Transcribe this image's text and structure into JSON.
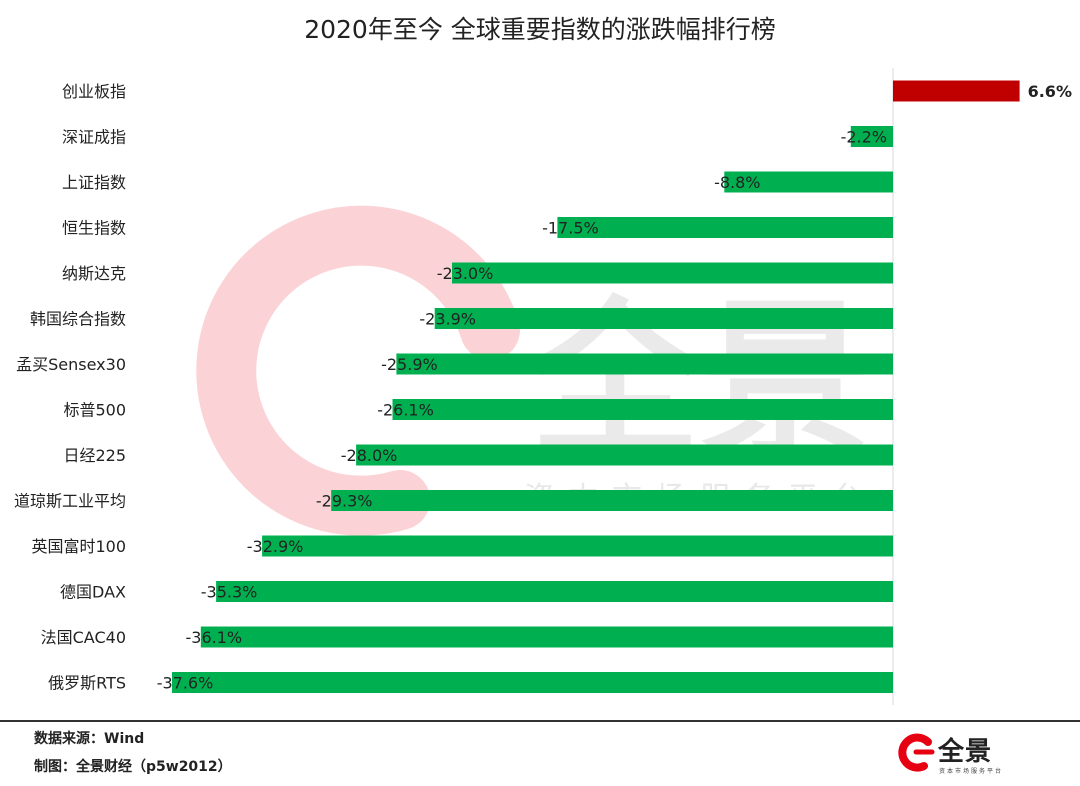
{
  "chart_data": {
    "type": "bar",
    "orientation": "horizontal",
    "title": "2020年至今 全球重要指数的涨跌幅排行榜",
    "categories": [
      "创业板指",
      "深证成指",
      "上证指数",
      "恒生指数",
      "纳斯达克",
      "韩国综合指数",
      "孟买Sensex30",
      "标普500",
      "日经225",
      "道琼斯工业平均",
      "英国富时100",
      "德国DAX",
      "法国CAC40",
      "俄罗斯RTS"
    ],
    "values": [
      6.6,
      -2.2,
      -8.8,
      -17.5,
      -23.0,
      -23.9,
      -25.9,
      -26.1,
      -28.0,
      -29.3,
      -32.9,
      -35.3,
      -36.1,
      -37.6
    ],
    "data_labels": [
      "6.6%",
      "-2.2%",
      "-8.8%",
      "-17.5%",
      "-23.0%",
      "-23.9%",
      "-25.9%",
      "-26.1%",
      "-28.0%",
      "-29.3%",
      "-32.9%",
      "-35.3%",
      "-36.1%",
      "-37.6%"
    ],
    "xlim": [
      -37.6,
      6.6
    ],
    "colors": {
      "positive": "#c00000",
      "negative": "#00b050"
    },
    "grid": false,
    "legend": "none"
  },
  "watermark": {
    "brand": "全景",
    "tagline": "资本市场服务平台"
  },
  "footer": {
    "source": "数据来源：Wind",
    "made_by": "制图：全景财经（p5w2012）"
  },
  "logo": {
    "brand": "全景",
    "tagline": "资本市场服务平台",
    "color": "#e60012"
  }
}
